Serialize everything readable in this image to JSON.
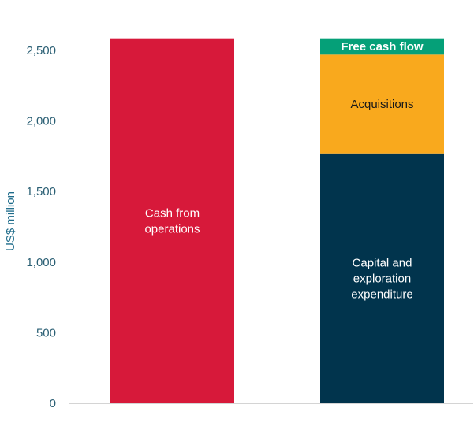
{
  "chart_data": {
    "type": "bar",
    "stacked": true,
    "ylabel": "US$ million",
    "ylim": [
      0,
      2600
    ],
    "yticks": [
      0,
      500,
      1000,
      1500,
      2000,
      2500
    ],
    "ytick_labels": [
      "0",
      "500",
      "1,000",
      "1,500",
      "2,000",
      "2,500"
    ],
    "grid": false,
    "bars": [
      {
        "segments": [
          {
            "label": "Cash from\noperations",
            "value": 2585,
            "color": "#d7193a",
            "text_color": "#ffffff",
            "bold": false
          }
        ]
      },
      {
        "segments": [
          {
            "label": "Capital and\nexploration\nexpenditure",
            "value": 1770,
            "color": "#01344d",
            "text_color": "#ffffff",
            "bold": false
          },
          {
            "label": "Acquisitions",
            "value": 700,
            "color": "#f9a91d",
            "text_color": "#1a1a1a",
            "bold": false
          },
          {
            "label": "Free cash flow",
            "value": 115,
            "color": "#05a078",
            "text_color": "#ffffff",
            "bold": true
          }
        ]
      }
    ]
  }
}
